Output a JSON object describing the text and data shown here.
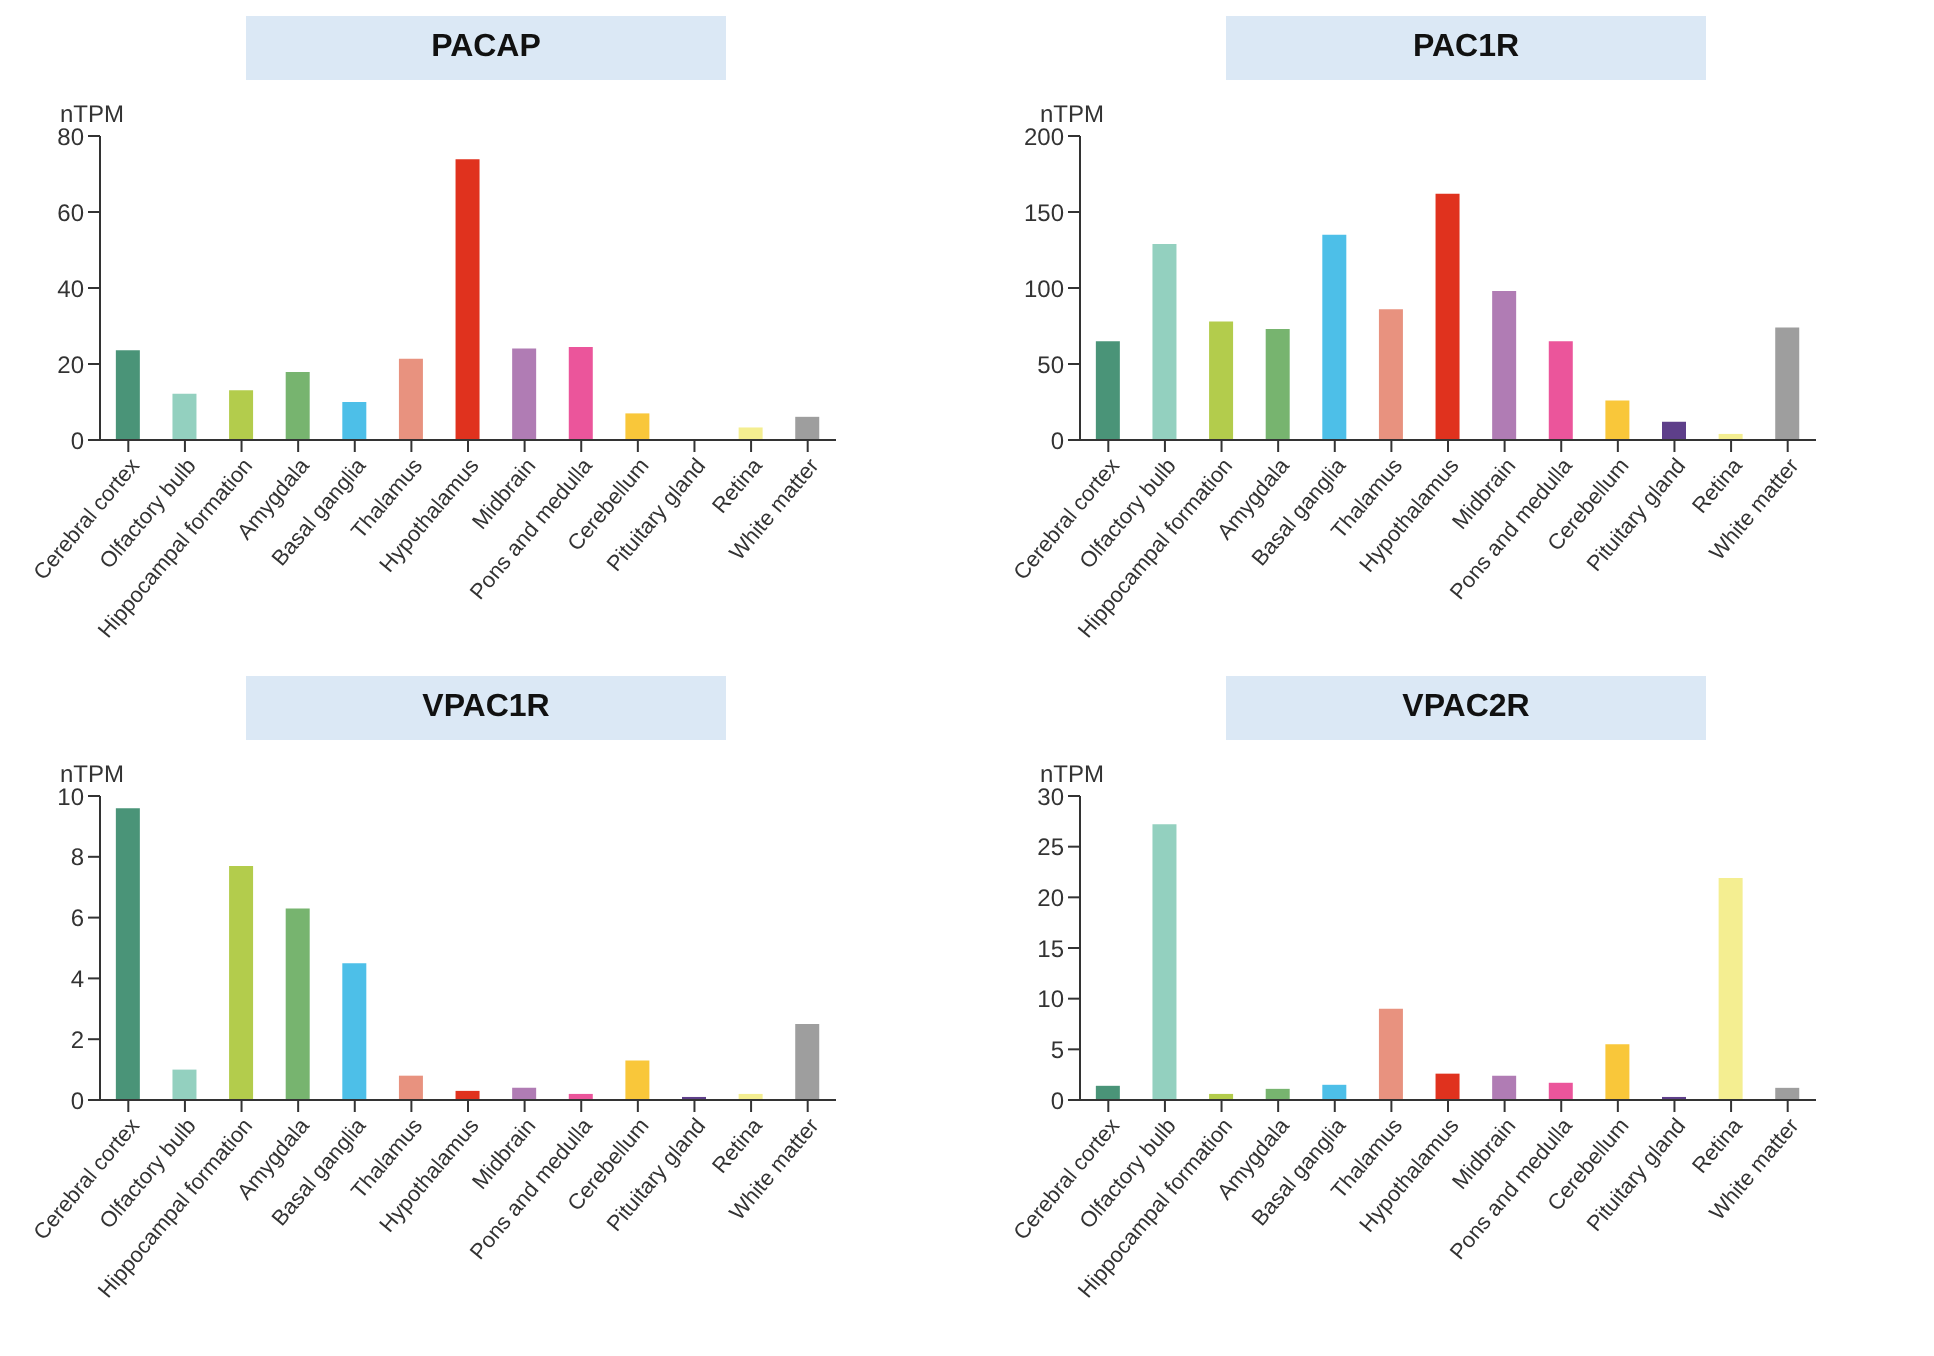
{
  "chart_data": [
    {
      "type": "bar",
      "title": "PACAP",
      "ylabel": "nTPM",
      "categories": [
        "Cerebral cortex",
        "Olfactory bulb",
        "Hippocampal formation",
        "Amygdala",
        "Basal ganglia",
        "Thalamus",
        "Hypothalamus",
        "Midbrain",
        "Pons and medulla",
        "Cerebellum",
        "Pituitary gland",
        "Retina",
        "White matter"
      ],
      "values": [
        23.6,
        12.2,
        13.1,
        17.9,
        10.0,
        21.4,
        73.9,
        24.1,
        24.5,
        7.0,
        0,
        3.3,
        6.1
      ],
      "colors": [
        "#4a9478",
        "#93d0bf",
        "#b3cc4c",
        "#77b46f",
        "#4dbfe8",
        "#e8927f",
        "#e0321e",
        "#b07cb4",
        "#eb559b",
        "#f9c73a",
        "#5e3f8a",
        "#f4ee91",
        "#9e9e9e"
      ],
      "ylim": [
        0,
        80
      ],
      "yticks": [
        0,
        20,
        40,
        60,
        80
      ]
    },
    {
      "type": "bar",
      "title": "PAC1R",
      "ylabel": "nTPM",
      "categories": [
        "Cerebral cortex",
        "Olfactory bulb",
        "Hippocampal formation",
        "Amygdala",
        "Basal ganglia",
        "Thalamus",
        "Hypothalamus",
        "Midbrain",
        "Pons and medulla",
        "Cerebellum",
        "Pituitary gland",
        "Retina",
        "White matter"
      ],
      "values": [
        65,
        129,
        78,
        73,
        135,
        86,
        162,
        98,
        65,
        26,
        12,
        4,
        74
      ],
      "colors": [
        "#4a9478",
        "#93d0bf",
        "#b3cc4c",
        "#77b46f",
        "#4dbfe8",
        "#e8927f",
        "#e0321e",
        "#b07cb4",
        "#eb559b",
        "#f9c73a",
        "#5e3f8a",
        "#f4ee91",
        "#9e9e9e"
      ],
      "ylim": [
        0,
        200
      ],
      "yticks": [
        0,
        50,
        100,
        150,
        200
      ]
    },
    {
      "type": "bar",
      "title": "VPAC1R",
      "ylabel": "nTPM",
      "categories": [
        "Cerebral cortex",
        "Olfactory bulb",
        "Hippocampal formation",
        "Amygdala",
        "Basal ganglia",
        "Thalamus",
        "Hypothalamus",
        "Midbrain",
        "Pons and medulla",
        "Cerebellum",
        "Pituitary gland",
        "Retina",
        "White matter"
      ],
      "values": [
        9.6,
        1.0,
        7.7,
        6.3,
        4.5,
        0.8,
        0.3,
        0.4,
        0.2,
        1.3,
        0.1,
        0.2,
        2.5
      ],
      "colors": [
        "#4a9478",
        "#93d0bf",
        "#b3cc4c",
        "#77b46f",
        "#4dbfe8",
        "#e8927f",
        "#e0321e",
        "#b07cb4",
        "#eb559b",
        "#f9c73a",
        "#5e3f8a",
        "#f4ee91",
        "#9e9e9e"
      ],
      "ylim": [
        0,
        10
      ],
      "yticks": [
        0,
        2,
        4,
        6,
        8,
        10
      ]
    },
    {
      "type": "bar",
      "title": "VPAC2R",
      "ylabel": "nTPM",
      "categories": [
        "Cerebral cortex",
        "Olfactory bulb",
        "Hippocampal formation",
        "Amygdala",
        "Basal ganglia",
        "Thalamus",
        "Hypothalamus",
        "Midbrain",
        "Pons and medulla",
        "Cerebellum",
        "Pituitary gland",
        "Retina",
        "White matter"
      ],
      "values": [
        1.4,
        27.2,
        0.6,
        1.1,
        1.5,
        9.0,
        2.6,
        2.4,
        1.7,
        5.5,
        0.3,
        21.9,
        1.2
      ],
      "colors": [
        "#4a9478",
        "#93d0bf",
        "#b3cc4c",
        "#77b46f",
        "#4dbfe8",
        "#e8927f",
        "#e0321e",
        "#b07cb4",
        "#eb559b",
        "#f9c73a",
        "#5e3f8a",
        "#f4ee91",
        "#9e9e9e"
      ],
      "ylim": [
        0,
        30
      ],
      "yticks": [
        0,
        5,
        10,
        15,
        20,
        25,
        30
      ]
    }
  ]
}
